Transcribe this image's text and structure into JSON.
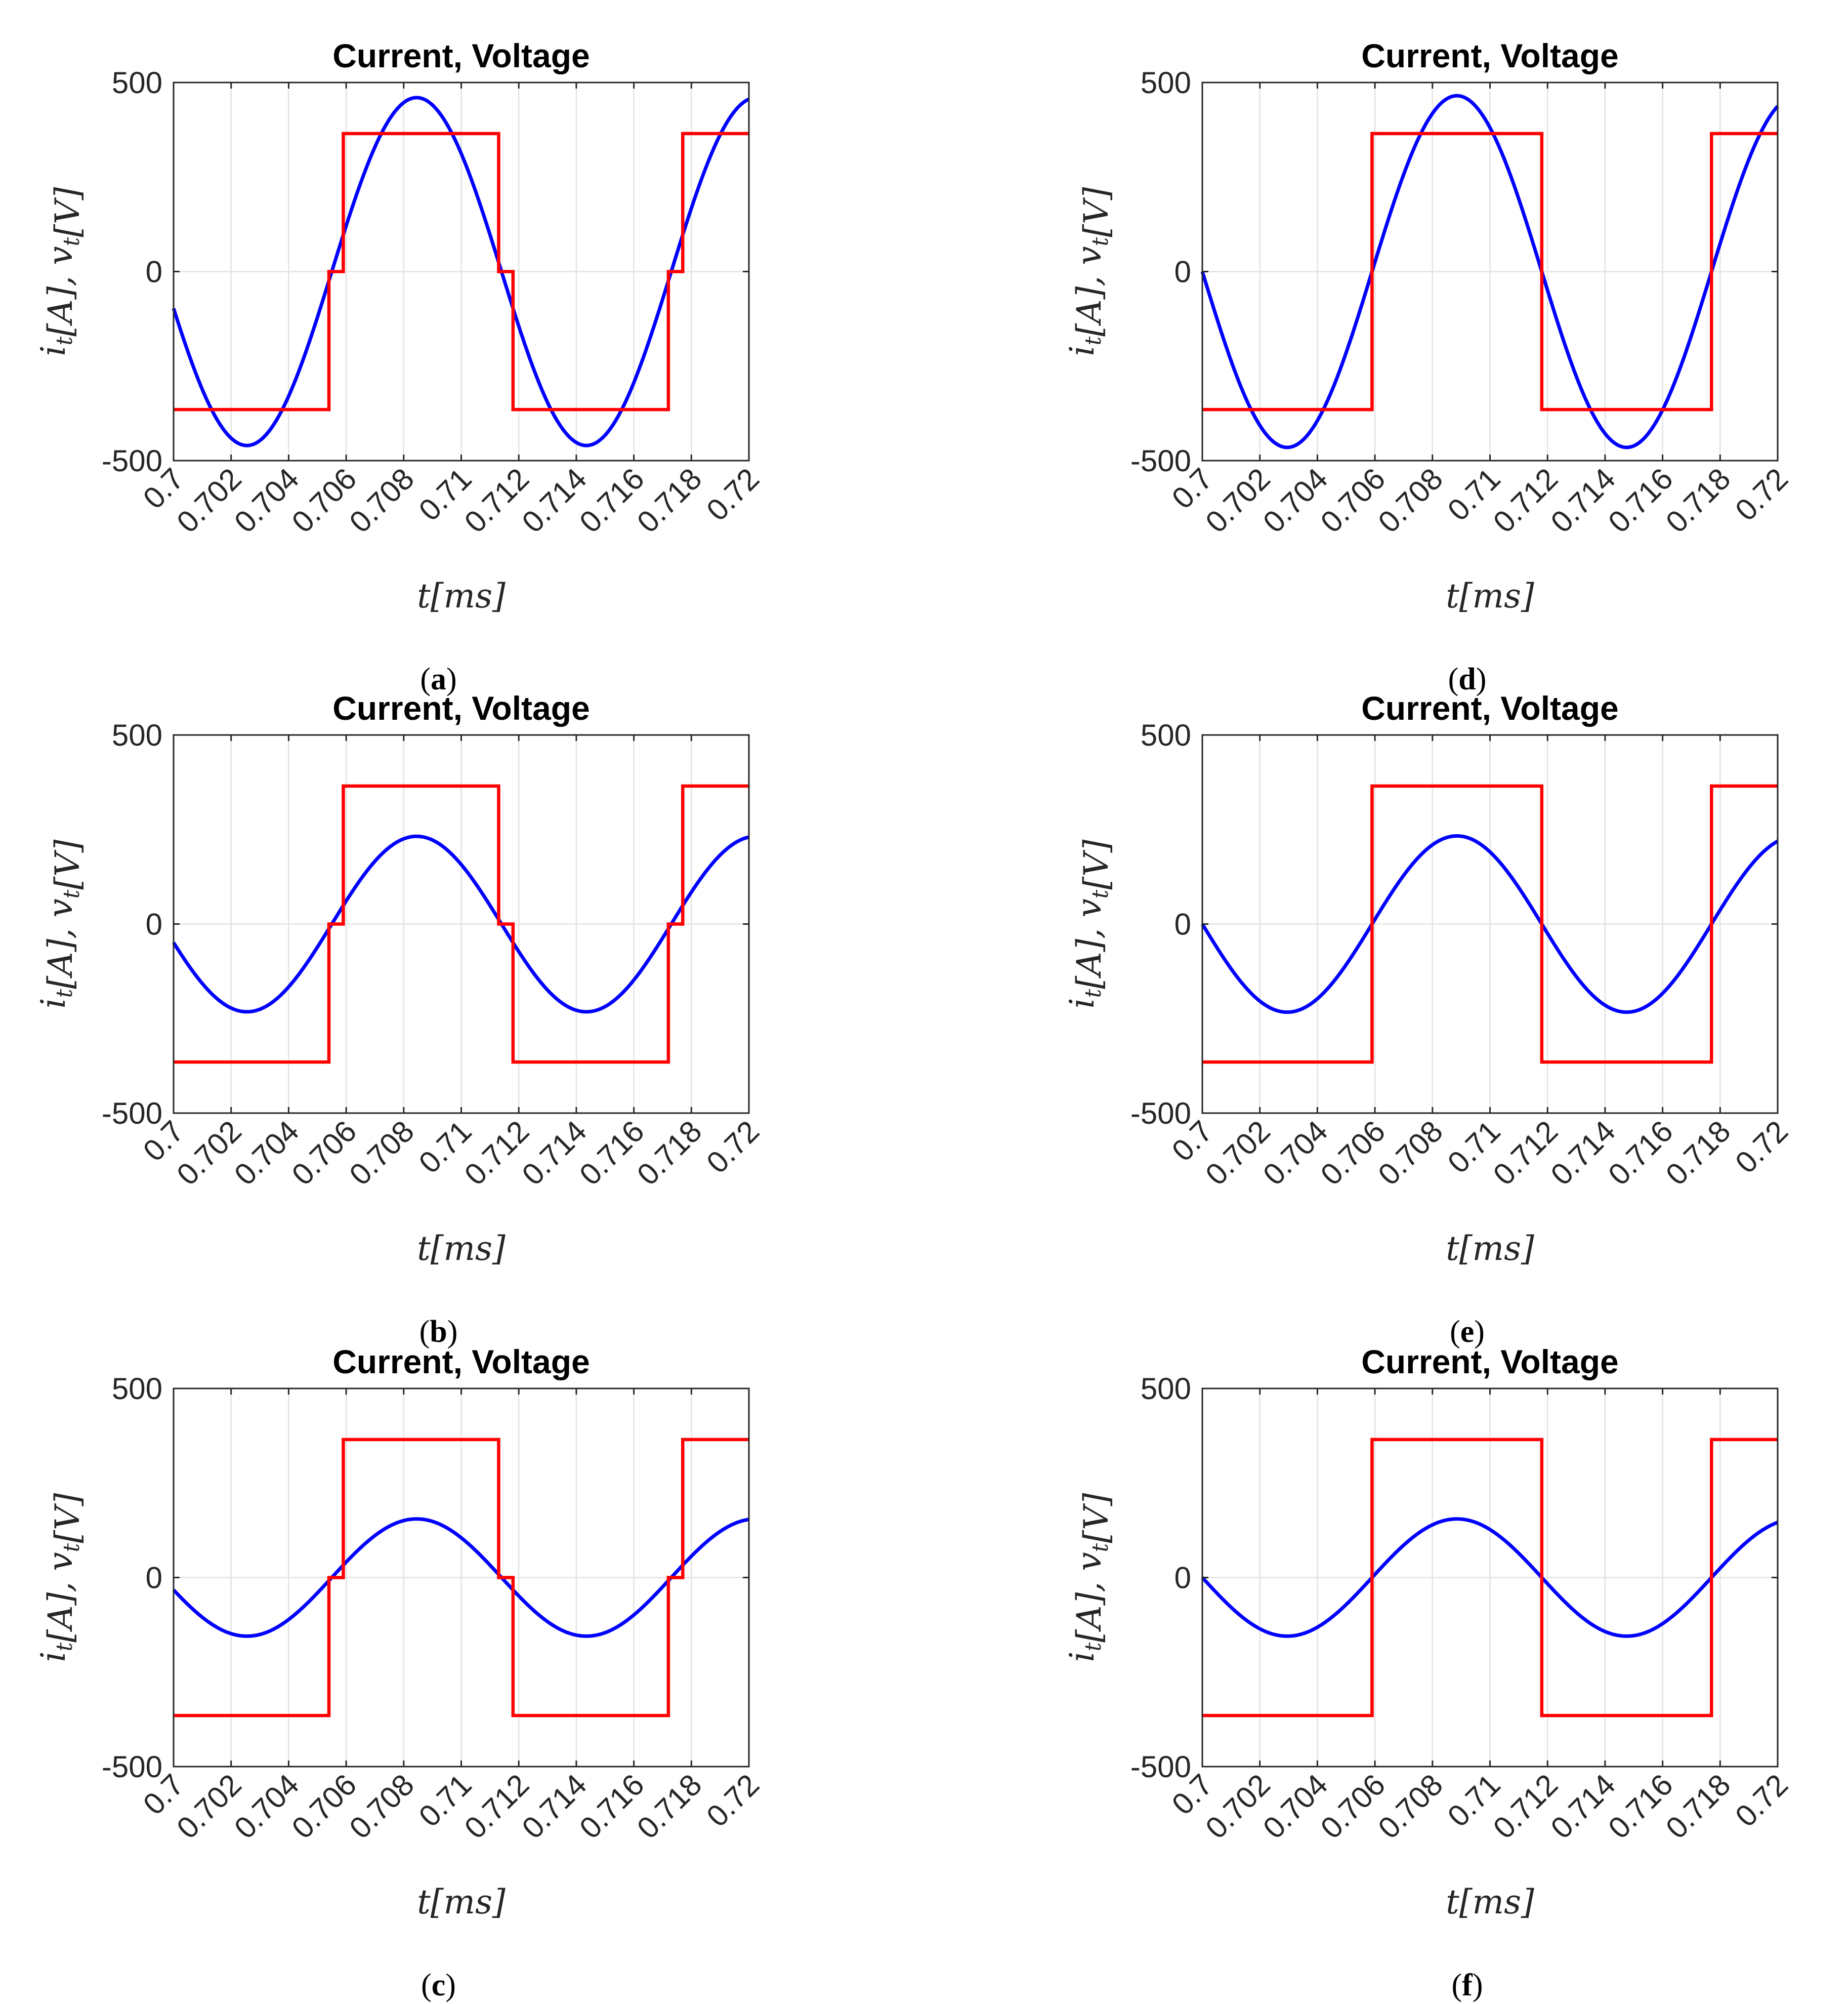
{
  "colors": {
    "current": "#0000ff",
    "voltage": "#ff0000",
    "grid": "#e3e3e3",
    "axis": "#262626"
  },
  "chart_data": [
    {
      "id": "a",
      "caption_letter": "a",
      "type": "line",
      "title": "Current, Voltage",
      "xlabel": "t[ms]",
      "ylabel": "i_t[A], v_t[V]",
      "xlim": [
        0.7,
        0.72
      ],
      "ylim": [
        -500,
        500
      ],
      "xticks": [
        "0.7",
        "0.702",
        "0.704",
        "0.706",
        "0.708",
        "0.71",
        "0.712",
        "0.714",
        "0.716",
        "0.718",
        "0.72"
      ],
      "yticks": [
        "500",
        "0",
        "-500"
      ],
      "grid": true,
      "series": [
        {
          "name": "current",
          "kind": "sine",
          "amplitude": 460,
          "period": 0.0118,
          "zero_cross_rising": 0.7055
        },
        {
          "name": "voltage",
          "kind": "step",
          "x": [
            0.7,
            0.7054,
            0.7054,
            0.7059,
            0.7059,
            0.7113,
            0.7113,
            0.7118,
            0.7118,
            0.7172,
            0.7172,
            0.7177,
            0.7177,
            0.72
          ],
          "y": [
            -365,
            -365,
            0,
            0,
            365,
            365,
            0,
            0,
            -365,
            -365,
            0,
            0,
            365,
            365
          ]
        }
      ]
    },
    {
      "id": "b",
      "caption_letter": "b",
      "type": "line",
      "title": "Current, Voltage",
      "xlabel": "t[ms]",
      "ylabel": "i_t[A], v_t[V]",
      "xlim": [
        0.7,
        0.72
      ],
      "ylim": [
        -500,
        500
      ],
      "xticks": [
        "0.7",
        "0.702",
        "0.704",
        "0.706",
        "0.708",
        "0.71",
        "0.712",
        "0.714",
        "0.716",
        "0.718",
        "0.72"
      ],
      "yticks": [
        "500",
        "0",
        "-500"
      ],
      "grid": true,
      "series": [
        {
          "name": "current",
          "kind": "sine",
          "amplitude": 232,
          "period": 0.0118,
          "zero_cross_rising": 0.7055
        },
        {
          "name": "voltage",
          "kind": "step",
          "x": [
            0.7,
            0.7054,
            0.7054,
            0.7059,
            0.7059,
            0.7113,
            0.7113,
            0.7118,
            0.7118,
            0.7172,
            0.7172,
            0.7177,
            0.7177,
            0.72
          ],
          "y": [
            -365,
            -365,
            0,
            0,
            365,
            365,
            0,
            0,
            -365,
            -365,
            0,
            0,
            365,
            365
          ]
        }
      ]
    },
    {
      "id": "c",
      "caption_letter": "c",
      "type": "line",
      "title": "Current, Voltage",
      "xlabel": "t[ms]",
      "ylabel": "i_t[A], v_t[V]",
      "xlim": [
        0.7,
        0.72
      ],
      "ylim": [
        -500,
        500
      ],
      "xticks": [
        "0.7",
        "0.702",
        "0.704",
        "0.706",
        "0.708",
        "0.71",
        "0.712",
        "0.714",
        "0.716",
        "0.718",
        "0.72"
      ],
      "yticks": [
        "500",
        "0",
        "-500"
      ],
      "grid": true,
      "series": [
        {
          "name": "current",
          "kind": "sine",
          "amplitude": 155,
          "period": 0.0118,
          "zero_cross_rising": 0.7055
        },
        {
          "name": "voltage",
          "kind": "step",
          "x": [
            0.7,
            0.7054,
            0.7054,
            0.7059,
            0.7059,
            0.7113,
            0.7113,
            0.7118,
            0.7118,
            0.7172,
            0.7172,
            0.7177,
            0.7177,
            0.72
          ],
          "y": [
            -365,
            -365,
            0,
            0,
            365,
            365,
            0,
            0,
            -365,
            -365,
            0,
            0,
            365,
            365
          ]
        }
      ]
    },
    {
      "id": "d",
      "caption_letter": "d",
      "type": "line",
      "title": "Current, Voltage",
      "xlabel": "t[ms]",
      "ylabel": "i_t[A], v_t[V]",
      "xlim": [
        0.7,
        0.72
      ],
      "ylim": [
        -500,
        500
      ],
      "xticks": [
        "0.7",
        "0.702",
        "0.704",
        "0.706",
        "0.708",
        "0.71",
        "0.712",
        "0.714",
        "0.716",
        "0.718",
        "0.72"
      ],
      "yticks": [
        "500",
        "0",
        "-500"
      ],
      "grid": true,
      "series": [
        {
          "name": "current",
          "kind": "sine",
          "amplitude": 465,
          "period": 0.0118,
          "zero_cross_rising": 0.7059
        },
        {
          "name": "voltage",
          "kind": "step",
          "x": [
            0.7,
            0.7059,
            0.7059,
            0.7118,
            0.7118,
            0.7177,
            0.7177,
            0.72
          ],
          "y": [
            -365,
            -365,
            365,
            365,
            -365,
            -365,
            365,
            365
          ]
        }
      ]
    },
    {
      "id": "e",
      "caption_letter": "e",
      "type": "line",
      "title": "Current, Voltage",
      "xlabel": "t[ms]",
      "ylabel": "i_t[A], v_t[V]",
      "xlim": [
        0.7,
        0.72
      ],
      "ylim": [
        -500,
        500
      ],
      "xticks": [
        "0.7",
        "0.702",
        "0.704",
        "0.706",
        "0.708",
        "0.71",
        "0.712",
        "0.714",
        "0.716",
        "0.718",
        "0.72"
      ],
      "yticks": [
        "500",
        "0",
        "-500"
      ],
      "grid": true,
      "series": [
        {
          "name": "current",
          "kind": "sine",
          "amplitude": 233,
          "period": 0.0118,
          "zero_cross_rising": 0.7059
        },
        {
          "name": "voltage",
          "kind": "step",
          "x": [
            0.7,
            0.7059,
            0.7059,
            0.7118,
            0.7118,
            0.7177,
            0.7177,
            0.72
          ],
          "y": [
            -365,
            -365,
            365,
            365,
            -365,
            -365,
            365,
            365
          ]
        }
      ]
    },
    {
      "id": "f",
      "caption_letter": "f",
      "type": "line",
      "title": "Current, Voltage",
      "xlabel": "t[ms]",
      "ylabel": "i_t[A], v_t[V]",
      "xlim": [
        0.7,
        0.72
      ],
      "ylim": [
        -500,
        500
      ],
      "xticks": [
        "0.7",
        "0.702",
        "0.704",
        "0.706",
        "0.708",
        "0.71",
        "0.712",
        "0.714",
        "0.716",
        "0.718",
        "0.72"
      ],
      "yticks": [
        "500",
        "0",
        "-500"
      ],
      "grid": true,
      "series": [
        {
          "name": "current",
          "kind": "sine",
          "amplitude": 155,
          "period": 0.0118,
          "zero_cross_rising": 0.7059
        },
        {
          "name": "voltage",
          "kind": "step",
          "x": [
            0.7,
            0.7059,
            0.7059,
            0.7118,
            0.7118,
            0.7177,
            0.7177,
            0.72
          ],
          "y": [
            -365,
            -365,
            365,
            365,
            -365,
            -365,
            365,
            365
          ]
        }
      ]
    }
  ]
}
